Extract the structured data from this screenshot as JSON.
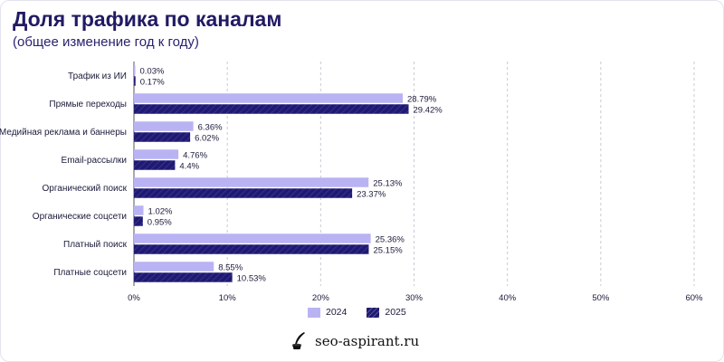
{
  "header": {
    "title": "Доля трафика по каналам",
    "subtitle": "(общее изменение год к году)"
  },
  "colors": {
    "series_2024": "#b9b3f3",
    "series_2025": "#1f1a70",
    "title": "#211a63"
  },
  "chart_data": {
    "type": "bar",
    "orientation": "horizontal",
    "title": "Доля трафика по каналам",
    "subtitle": "(общее изменение год к году)",
    "categories": [
      "Трафик из ИИ",
      "Прямые переходы",
      "Медийная реклама и баннеры",
      "Email-рассылки",
      "Органический поиск",
      "Органические соцсети",
      "Платный поиск",
      "Платные соцсети"
    ],
    "series": [
      {
        "name": "2024",
        "values": [
          0.03,
          28.79,
          6.36,
          4.76,
          25.13,
          1.02,
          25.36,
          8.55
        ],
        "labels": [
          "0.03%",
          "28.79%",
          "6.36%",
          "4.76%",
          "25.13%",
          "1.02%",
          "25.36%",
          "8.55%"
        ]
      },
      {
        "name": "2025",
        "values": [
          0.17,
          29.42,
          6.02,
          4.4,
          23.37,
          0.95,
          25.15,
          10.53
        ],
        "labels": [
          "0.17%",
          "29.42%",
          "6.02%",
          "4.4%",
          "23.37%",
          "0.95%",
          "25.15%",
          "10.53%"
        ]
      }
    ],
    "xlim": [
      0,
      60
    ],
    "xticks": [
      "0%",
      "10%",
      "20%",
      "30%",
      "40%",
      "50%",
      "60%"
    ],
    "grid": "vertical dashed",
    "legend": "bottom-center"
  },
  "legend": {
    "items": [
      {
        "label": "2024"
      },
      {
        "label": "2025"
      }
    ]
  },
  "footer": {
    "brand": "seo-aspirant.ru",
    "brand_icon": "inkwell-quill-icon"
  }
}
